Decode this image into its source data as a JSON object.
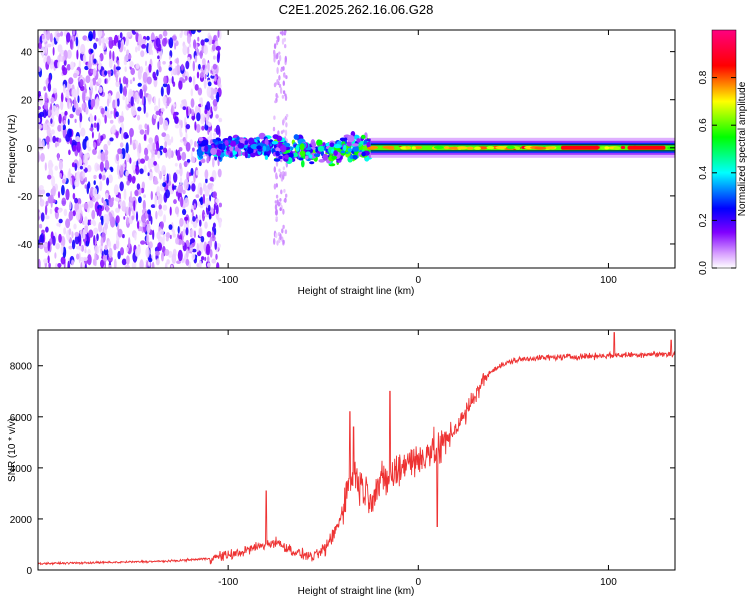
{
  "title": "C2E1.2025.262.16.06.G28",
  "chart_data": [
    {
      "type": "heatmap",
      "xlabel": "Height of straight line (km)",
      "ylabel": "Frequency (Hz)",
      "xlim": [
        -200,
        135
      ],
      "ylim": [
        -50,
        49
      ],
      "xticks": [
        -100,
        0,
        100
      ],
      "xtick_labels": [
        "-100",
        "0",
        "100"
      ],
      "yticks": [
        -40,
        -20,
        0,
        20,
        40
      ],
      "ytick_labels": [
        "-40",
        "-20",
        "0",
        "20",
        "40"
      ],
      "colorbar": {
        "label": "Normalized spectral amplitude",
        "range": [
          0,
          1
        ],
        "ticks": [
          0,
          0.2,
          0.4,
          0.6,
          0.8
        ],
        "tick_labels": [
          "0.0",
          "0.2",
          "0.4",
          "0.6",
          "0.8"
        ],
        "colormap": [
          "#ffffff",
          "#a000ff",
          "#0000ff",
          "#00ffff",
          "#00ff00",
          "#ffff00",
          "#ff0000",
          "#ff0080"
        ]
      },
      "features": {
        "noise_region_km": [
          -200,
          -110
        ],
        "transition_region_km": [
          -110,
          -40
        ],
        "coherent_tone_start_km": -25,
        "tone_frequency_hz": 0
      }
    },
    {
      "type": "line",
      "xlabel": "Height of straight line (km)",
      "ylabel": "SNR (10 * v/v)",
      "xlim": [
        -200,
        135
      ],
      "ylim": [
        0,
        9400
      ],
      "xticks": [
        -100,
        0,
        100
      ],
      "xtick_labels": [
        "-100",
        "0",
        "100"
      ],
      "yticks": [
        0,
        2000,
        4000,
        6000,
        8000
      ],
      "ytick_labels": [
        "0",
        "2000",
        "4000",
        "6000",
        "8000"
      ],
      "color": "#ee3333",
      "trend": {
        "x": [
          -200,
          -160,
          -130,
          -110,
          -95,
          -85,
          -75,
          -65,
          -55,
          -48,
          -42,
          -38,
          -34,
          -30,
          -25,
          -20,
          -15,
          -10,
          -5,
          0,
          5,
          10,
          15,
          20,
          25,
          30,
          35,
          40,
          50,
          60,
          80,
          100,
          120,
          135
        ],
        "y": [
          250,
          300,
          350,
          450,
          650,
          900,
          1100,
          700,
          500,
          900,
          1800,
          3000,
          3800,
          3300,
          2900,
          3400,
          3600,
          3900,
          4400,
          4200,
          4700,
          4600,
          5100,
          5600,
          6100,
          6900,
          7500,
          7900,
          8200,
          8300,
          8350,
          8400,
          8450,
          8450
        ]
      },
      "peaks": [
        {
          "x": -80,
          "y": 3100
        },
        {
          "x": -36,
          "y": 6200
        },
        {
          "x": -34,
          "y": 5600
        },
        {
          "x": -15,
          "y": 7000
        },
        {
          "x": 10,
          "y": 1700
        },
        {
          "x": 103,
          "y": 9300
        },
        {
          "x": 133,
          "y": 9000
        }
      ]
    }
  ]
}
